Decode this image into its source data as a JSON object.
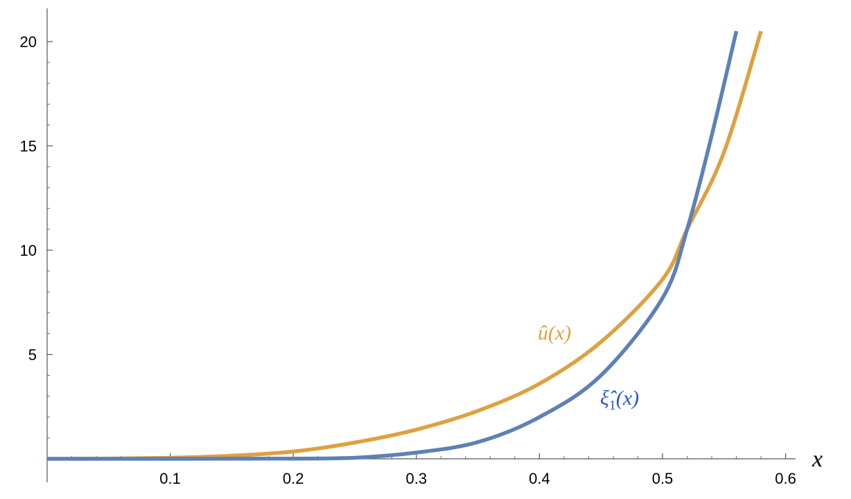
{
  "chart_data": {
    "type": "line",
    "title": "",
    "xlabel": "x",
    "ylabel": "",
    "xlim": [
      0,
      0.6
    ],
    "ylim": [
      0,
      20.5
    ],
    "x_ticks": [
      {
        "value": 0.1,
        "label": "0.1"
      },
      {
        "value": 0.2,
        "label": "0.2"
      },
      {
        "value": 0.3,
        "label": "0.3"
      },
      {
        "value": 0.4,
        "label": "0.4"
      },
      {
        "value": 0.5,
        "label": "0.5"
      },
      {
        "value": 0.6,
        "label": "0.6"
      }
    ],
    "y_ticks": [
      {
        "value": 5,
        "label": "5"
      },
      {
        "value": 10,
        "label": "10"
      },
      {
        "value": 15,
        "label": "15"
      },
      {
        "value": 20,
        "label": "20"
      }
    ],
    "grid": false,
    "legend": "inline labels",
    "series": [
      {
        "label_main": "û",
        "label_args": "(x)",
        "color": "#E0A040",
        "points": [
          [
            0.0,
            0.0
          ],
          [
            0.05,
            0.01
          ],
          [
            0.1,
            0.05
          ],
          [
            0.15,
            0.15
          ],
          [
            0.2,
            0.35
          ],
          [
            0.25,
            0.78
          ],
          [
            0.3,
            1.4
          ],
          [
            0.35,
            2.3
          ],
          [
            0.4,
            3.6
          ],
          [
            0.45,
            5.6
          ],
          [
            0.5,
            8.6
          ],
          [
            0.52,
            11.0
          ],
          [
            0.55,
            14.7
          ],
          [
            0.58,
            20.5
          ]
        ]
      },
      {
        "label_main": "ξ̂",
        "label_sub": "1",
        "label_args": "(x)",
        "color": "#5E81B5",
        "label_color": "#2850D8",
        "points": [
          [
            0.0,
            0.0
          ],
          [
            0.1,
            0.0
          ],
          [
            0.2,
            0.01
          ],
          [
            0.25,
            0.05
          ],
          [
            0.3,
            0.3
          ],
          [
            0.35,
            0.8
          ],
          [
            0.4,
            2.0
          ],
          [
            0.45,
            4.0
          ],
          [
            0.5,
            7.7
          ],
          [
            0.52,
            11.0
          ],
          [
            0.54,
            15.5
          ],
          [
            0.56,
            20.5
          ]
        ]
      }
    ]
  }
}
